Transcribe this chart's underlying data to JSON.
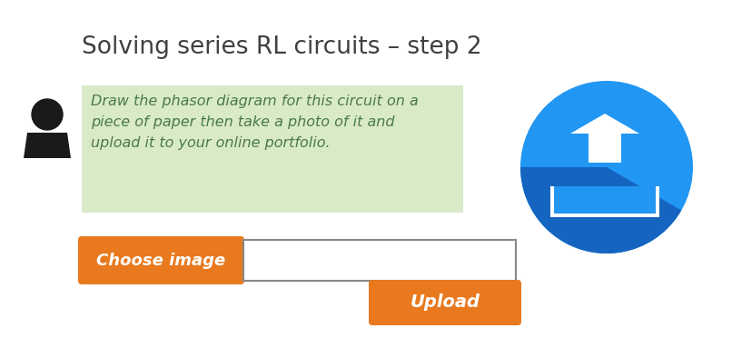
{
  "title": "Solving series RL circuits – step 2",
  "title_fontsize": 19,
  "title_color": "#404040",
  "body_text": "Draw the phasor diagram for this circuit on a\npiece of paper then take a photo of it and\nupload it to your online portfolio.",
  "body_fontsize": 11.5,
  "body_text_color": "#4a7a4a",
  "body_bg_color": "#d9eac8",
  "choose_btn_text": "Choose image",
  "choose_btn_color": "#e8791e",
  "choose_btn_fontsize": 13,
  "upload_btn_text": "Upload",
  "upload_btn_color": "#e8791e",
  "upload_btn_fontsize": 14,
  "file_box_color": "#888888",
  "upload_circle_color": "#2196f3",
  "upload_shadow_color": "#1565c0",
  "bg_color": "#ffffff",
  "person_color": "#1a1a1a"
}
